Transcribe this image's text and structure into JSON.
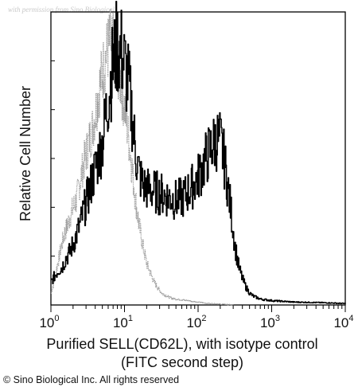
{
  "watermark": "with permission from Sino Biological",
  "copyright": "© Sino Biological Inc. All rights reserved",
  "chart_data": {
    "type": "line",
    "title": "",
    "xlabel_line1": "Purified SELL(CD62L), with isotype control",
    "xlabel_line2": "(FITC second step)",
    "ylabel": "Relative Cell Number",
    "x_scale": "log",
    "xlim": [
      1,
      10000
    ],
    "ylim": [
      0,
      100
    ],
    "x_ticks": [
      {
        "value": 1,
        "base": "10",
        "exp": "0"
      },
      {
        "value": 10,
        "base": "10",
        "exp": "1"
      },
      {
        "value": 100,
        "base": "10",
        "exp": "2"
      },
      {
        "value": 1000,
        "base": "10",
        "exp": "3"
      },
      {
        "value": 10000,
        "base": "10",
        "exp": "4"
      }
    ],
    "grid": false,
    "legend": "none",
    "series": [
      {
        "role": "isotype control",
        "color": "#9a9a9a",
        "style": "dotted",
        "x": [
          1,
          1.1,
          1.2,
          1.35,
          1.5,
          1.7,
          1.9,
          2.2,
          2.5,
          2.8,
          3.2,
          3.6,
          4,
          4.5,
          5,
          5.6,
          6.3,
          7,
          7.9,
          8.9,
          10,
          11.2,
          12.6,
          14,
          15.8,
          17.8,
          20,
          22.4,
          25,
          28,
          32,
          36,
          40,
          45,
          50,
          63,
          80,
          100,
          130,
          200,
          300
        ],
        "y": [
          4,
          8,
          13,
          19,
          24,
          28,
          32,
          36,
          43,
          49,
          55,
          60,
          66,
          74,
          80,
          86,
          90,
          88,
          83,
          76,
          68,
          58,
          47,
          36,
          27,
          20,
          14,
          11,
          8,
          6,
          4,
          3.3,
          2.7,
          2.2,
          2,
          1.7,
          1.3,
          1,
          0.6,
          0.3,
          0
        ]
      },
      {
        "role": "SELL (CD62L)",
        "color": "#000000",
        "style": "solid",
        "x": [
          1,
          1.12,
          1.26,
          1.41,
          1.58,
          1.78,
          2,
          2.5,
          3.2,
          4,
          5,
          5.6,
          6.3,
          7.1,
          7.9,
          8.9,
          10,
          11.2,
          12.6,
          14.1,
          15.8,
          17.8,
          20,
          25,
          32,
          40,
          50,
          63,
          79,
          100,
          126,
          150,
          178,
          200,
          224,
          251,
          282,
          316,
          355,
          398,
          447,
          501,
          562,
          631,
          708,
          1000,
          2000,
          5000,
          10000
        ],
        "y": [
          8,
          10,
          12,
          13,
          16,
          18,
          21,
          28,
          38,
          47,
          56,
          66,
          76,
          84,
          89,
          87,
          82,
          76,
          65,
          52,
          45,
          41,
          40,
          39,
          38,
          37,
          36,
          37,
          40,
          44,
          50,
          54,
          57,
          56,
          50,
          41,
          31,
          20,
          13,
          9,
          6,
          4,
          3,
          2.5,
          2,
          1.5,
          1,
          0.8,
          0.5
        ]
      }
    ]
  }
}
